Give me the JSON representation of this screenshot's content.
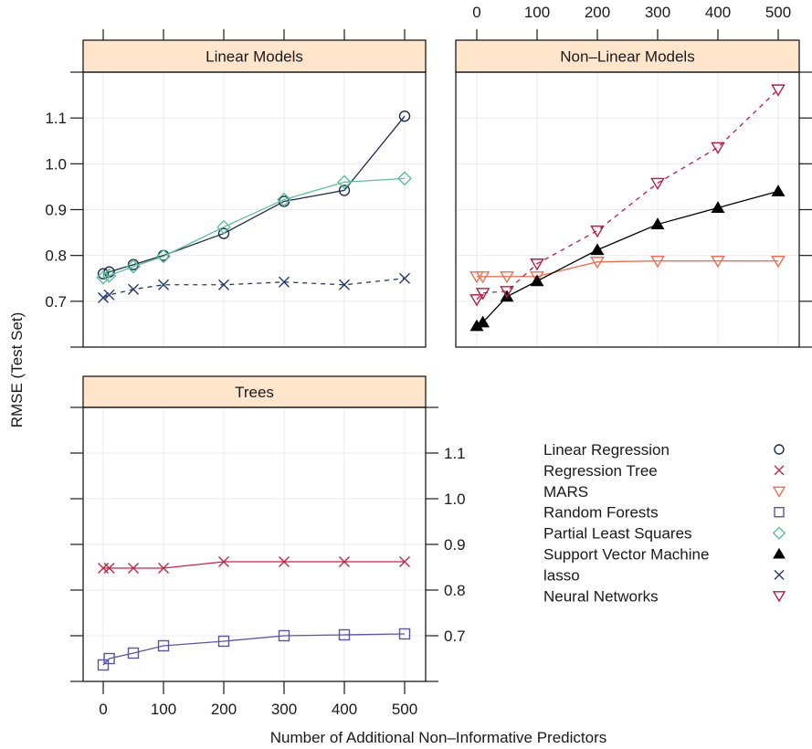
{
  "chart_data": {
    "type": "line",
    "xlabel": "Number of Additional Non–Informative Predictors",
    "ylabel": "RMSE (Test Set)",
    "x": [
      0,
      10,
      50,
      100,
      200,
      300,
      400,
      500
    ],
    "xlim": [
      0,
      500
    ],
    "ylim": [
      0.6,
      1.2
    ],
    "x_ticks": [
      "0",
      "100",
      "200",
      "300",
      "400",
      "500"
    ],
    "x_tick_values": [
      0,
      100,
      200,
      300,
      400,
      500
    ],
    "y_ticks": [
      "0.7",
      "0.8",
      "0.9",
      "1.0",
      "1.1"
    ],
    "y_tick_values": [
      0.7,
      0.8,
      0.9,
      1.0,
      1.1
    ],
    "grid": true,
    "legend_position": "bottom-right",
    "panels": [
      {
        "id": "linear",
        "title": "Linear Models",
        "series": [
          "Linear Regression",
          "Partial Least Squares",
          "lasso"
        ]
      },
      {
        "id": "nonlinear",
        "title": "Non–Linear Models",
        "series": [
          "MARS",
          "Support Vector Machine",
          "Neural Networks"
        ]
      },
      {
        "id": "trees",
        "title": "Trees",
        "series": [
          "Regression Tree",
          "Random Forests"
        ]
      }
    ],
    "series": [
      {
        "name": "Linear Regression",
        "symbol": "circle",
        "color": "#1d2b4d",
        "dash": false,
        "values": [
          0.76,
          0.764,
          0.78,
          0.8,
          0.848,
          0.918,
          0.942,
          1.104
        ]
      },
      {
        "name": "Regression Tree",
        "symbol": "x",
        "color": "#c0284a",
        "dash": false,
        "values": [
          0.848,
          0.848,
          0.848,
          0.848,
          0.862,
          0.862,
          0.862,
          0.862
        ]
      },
      {
        "name": "MARS",
        "symbol": "triangle-down",
        "color": "#ee6f4f",
        "dash": false,
        "values": [
          0.754,
          0.754,
          0.754,
          0.754,
          0.786,
          0.788,
          0.788,
          0.788
        ]
      },
      {
        "name": "Random Forests",
        "symbol": "square",
        "color": "#5a55a3",
        "dash": false,
        "values": [
          0.636,
          0.65,
          0.662,
          0.678,
          0.688,
          0.7,
          0.702,
          0.704
        ]
      },
      {
        "name": "Partial Least Squares",
        "symbol": "diamond",
        "color": "#5dbe9a",
        "dash": false,
        "values": [
          0.752,
          0.756,
          0.776,
          0.798,
          0.862,
          0.922,
          0.96,
          0.968
        ]
      },
      {
        "name": "Support Vector Machine",
        "symbol": "triangle-up-filled",
        "color": "#000000",
        "dash": false,
        "values": [
          0.646,
          0.654,
          0.71,
          0.744,
          0.812,
          0.868,
          0.904,
          0.94
        ]
      },
      {
        "name": "lasso",
        "symbol": "x",
        "color": "#24396b",
        "dash": true,
        "values": [
          0.708,
          0.714,
          0.726,
          0.736,
          0.736,
          0.742,
          0.736,
          0.75
        ]
      },
      {
        "name": "Neural Networks",
        "symbol": "triangle-down",
        "color": "#b71c48",
        "dash": true,
        "values": [
          0.704,
          0.718,
          0.722,
          0.782,
          0.854,
          0.958,
          1.036,
          1.162
        ]
      }
    ],
    "legend": [
      "Linear Regression",
      "Regression Tree",
      "MARS",
      "Random Forests",
      "Partial Least Squares",
      "Support Vector Machine",
      "lasso",
      "Neural Networks"
    ]
  },
  "colors": {
    "strip_background": "#ffe5cc",
    "grid": "#ebebeb",
    "axis": "#1a1a1a"
  }
}
